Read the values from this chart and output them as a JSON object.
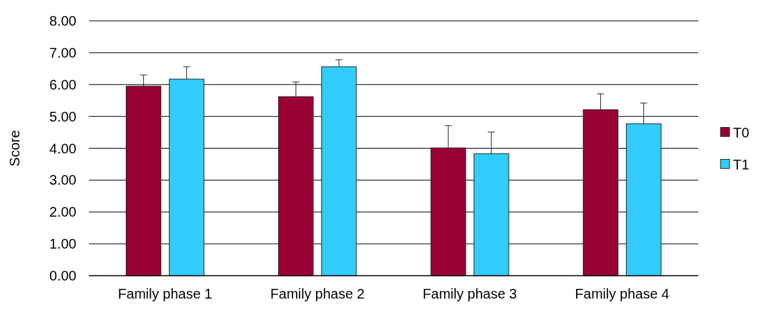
{
  "chart_data": {
    "type": "bar",
    "ylabel": "Score",
    "categories": [
      "Family phase 1",
      "Family phase 2",
      "Family phase 3",
      "Family phase 4"
    ],
    "series": [
      {
        "name": "T0",
        "color": "#990033",
        "values": [
          5.95,
          5.62,
          4.01,
          5.21
        ],
        "errors": [
          [
            5.95,
            6.3
          ],
          [
            5.62,
            6.08
          ],
          [
            4.01,
            4.71
          ],
          [
            5.21,
            5.71
          ]
        ]
      },
      {
        "name": "T1",
        "color": "#33ccff",
        "values": [
          6.17,
          6.56,
          3.83,
          4.77
        ],
        "errors": [
          [
            6.17,
            6.56
          ],
          [
            6.56,
            6.78
          ],
          [
            3.83,
            4.51
          ],
          [
            4.77,
            5.42
          ]
        ]
      }
    ],
    "ylim": [
      0,
      8
    ],
    "yticks": [
      {
        "value": 0,
        "label": "0.00"
      },
      {
        "value": 1,
        "label": "1.00"
      },
      {
        "value": 2,
        "label": "2.00"
      },
      {
        "value": 3,
        "label": "3.00"
      },
      {
        "value": 4,
        "label": "4.00"
      },
      {
        "value": 5,
        "label": "5.00"
      },
      {
        "value": 6,
        "label": "6.00"
      },
      {
        "value": 7,
        "label": "7.00"
      },
      {
        "value": 8,
        "label": "8.00"
      }
    ],
    "grid": "y",
    "legend": "right"
  }
}
